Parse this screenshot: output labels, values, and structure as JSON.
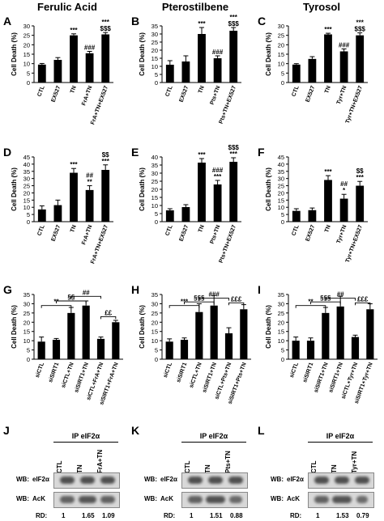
{
  "column_titles": [
    "Ferulic Acid",
    "Pterostilbene",
    "Tyrosol"
  ],
  "chart_data": [
    {
      "id": "A",
      "type": "bar",
      "ylabel": "Cell Death (%)",
      "ylim": [
        0,
        30
      ],
      "yticks": [
        0,
        5,
        10,
        15,
        20,
        25,
        30
      ],
      "categories": [
        "CTL",
        "EX527",
        "TN",
        "FrA+TN",
        "FrA+TN+EX527"
      ],
      "values": [
        9.5,
        12,
        25,
        15.5,
        25.5
      ],
      "errors": [
        0.6,
        1.2,
        0.8,
        1.0,
        1.0
      ],
      "annotations": [
        "",
        "",
        "***",
        "###",
        "***\n$$$"
      ]
    },
    {
      "id": "B",
      "type": "bar",
      "ylabel": "Cell Death (%)",
      "ylim": [
        0,
        35
      ],
      "yticks": [
        0,
        5,
        10,
        15,
        20,
        25,
        30,
        35
      ],
      "categories": [
        "CTL",
        "EX527",
        "TN",
        "Pts+TN",
        "Pts+TN+EX527"
      ],
      "values": [
        11,
        13,
        30,
        15,
        32
      ],
      "errors": [
        2.5,
        3.5,
        4.0,
        1.5,
        2.0
      ],
      "annotations": [
        "",
        "",
        "***",
        "###",
        "***\n$$$"
      ]
    },
    {
      "id": "C",
      "type": "bar",
      "ylabel": "Cell Death (%)",
      "ylim": [
        0,
        30
      ],
      "yticks": [
        0,
        5,
        10,
        15,
        20,
        25,
        30
      ],
      "categories": [
        "CTL",
        "EX527",
        "TN",
        "Tyr+TN",
        "Tyr+TN+EX527"
      ],
      "values": [
        9.5,
        12.5,
        25.5,
        16.5,
        25
      ],
      "errors": [
        0.5,
        1.2,
        0.6,
        1.3,
        1.3
      ],
      "annotations": [
        "",
        "",
        "***",
        "###",
        "***\n$$$"
      ]
    },
    {
      "id": "D",
      "type": "bar",
      "ylabel": "Cell Death (%)",
      "ylim": [
        0,
        45
      ],
      "yticks": [
        0,
        5,
        10,
        15,
        20,
        25,
        30,
        35,
        40,
        45
      ],
      "categories": [
        "CTL",
        "EX527",
        "TN",
        "FrA+TN",
        "FrA+TN+EX527"
      ],
      "values": [
        8.5,
        11.5,
        34,
        22,
        36
      ],
      "errors": [
        2.5,
        3.5,
        3.0,
        3.0,
        3.5
      ],
      "annotations": [
        "",
        "",
        "***",
        "##\n**",
        "$$\n***"
      ]
    },
    {
      "id": "E",
      "type": "bar",
      "ylabel": "Cell Death (%)",
      "ylim": [
        0,
        40
      ],
      "yticks": [
        0,
        5,
        10,
        15,
        20,
        25,
        30,
        35,
        40
      ],
      "categories": [
        "CTL",
        "EX527",
        "TN",
        "Pts+TN",
        "Pts+TN+EX527"
      ],
      "values": [
        7,
        9,
        36.5,
        23,
        37
      ],
      "errors": [
        1.0,
        1.5,
        2.5,
        2.5,
        2.5
      ],
      "annotations": [
        "",
        "",
        "***",
        "###\n***",
        "$$$\n***"
      ]
    },
    {
      "id": "F",
      "type": "bar",
      "ylabel": "Cell Death (%)",
      "ylim": [
        0,
        45
      ],
      "yticks": [
        0,
        5,
        10,
        15,
        20,
        25,
        30,
        35,
        40,
        45
      ],
      "categories": [
        "CTL",
        "EX527",
        "TN",
        "Tyr+TN",
        "Tyr+TN+EX527"
      ],
      "values": [
        7.5,
        8,
        29,
        16,
        25
      ],
      "errors": [
        1.5,
        1.5,
        3.0,
        3.0,
        3.0
      ],
      "annotations": [
        "",
        "",
        "***",
        "##\n*",
        "$$\n***"
      ]
    },
    {
      "id": "G",
      "type": "bar",
      "ylabel": "Cell Death (%)",
      "ylim": [
        0,
        35
      ],
      "yticks": [
        0,
        5,
        10,
        15,
        20,
        25,
        30,
        35
      ],
      "categories": [
        "siCTL",
        "siSIRT1",
        "siCTL+TN",
        "siSIRT1+TN",
        "siCTL+FrA+TN",
        "siSIRT1+FrA+TN"
      ],
      "values": [
        9.5,
        10.5,
        25,
        29,
        11,
        20
      ],
      "errors": [
        2.5,
        0.7,
        3.0,
        2.5,
        1.0,
        1.0
      ],
      "brackets": [
        {
          "from": 0,
          "to": 2,
          "y": 29,
          "label": "**"
        },
        {
          "from": 1,
          "to": 3,
          "y": 31.5,
          "label": "§§"
        },
        {
          "from": 2,
          "to": 4,
          "y": 34,
          "label": "##"
        },
        {
          "from": 4,
          "to": 5,
          "y": 23,
          "label": "££"
        }
      ]
    },
    {
      "id": "H",
      "type": "bar",
      "ylabel": "Cell Death (%)",
      "ylim": [
        0,
        35
      ],
      "yticks": [
        0,
        5,
        10,
        15,
        20,
        25,
        30,
        35
      ],
      "categories": [
        "siCTL",
        "siSIRT1",
        "siCTL+TN",
        "siSIRT1+TN",
        "siCTL+Pts+TN",
        "siSIRT1+Pts+TN"
      ],
      "values": [
        9.5,
        10.5,
        25.5,
        29,
        14,
        27
      ],
      "errors": [
        1.5,
        1.0,
        4.5,
        5.5,
        3.0,
        2.5
      ],
      "brackets": [
        {
          "from": 0,
          "to": 2,
          "y": 29,
          "label": "***"
        },
        {
          "from": 1,
          "to": 3,
          "y": 31,
          "label": "§§§"
        },
        {
          "from": 2,
          "to": 4,
          "y": 33,
          "label": "###"
        },
        {
          "from": 4,
          "to": 5,
          "y": 30.5,
          "label": "£££"
        }
      ]
    },
    {
      "id": "I",
      "type": "bar",
      "ylabel": "Cell Death (%)",
      "ylim": [
        0,
        35
      ],
      "yticks": [
        0,
        5,
        10,
        15,
        20,
        25,
        30,
        35
      ],
      "categories": [
        "siCTL",
        "siSIRT1",
        "siSIRT1+TN",
        "siSIRT1+TN",
        "siCTL+Tyr+TN",
        "siSIRT1+Tyr+TN"
      ],
      "values": [
        10,
        10,
        25,
        28.5,
        12,
        27
      ],
      "errors": [
        2.0,
        1.5,
        3.0,
        5.5,
        1.0,
        3.0
      ],
      "brackets": [
        {
          "from": 0,
          "to": 2,
          "y": 29,
          "label": "**"
        },
        {
          "from": 1,
          "to": 3,
          "y": 31,
          "label": "§§§"
        },
        {
          "from": 2,
          "to": 4,
          "y": 33,
          "label": "##"
        },
        {
          "from": 4,
          "to": 5,
          "y": 30.5,
          "label": "£££"
        }
      ]
    }
  ],
  "blots": [
    {
      "id": "J",
      "ip": "IP eIF2α",
      "lanes": [
        "CTL",
        "TN",
        "FrA+TN"
      ],
      "rows": [
        "eIF2α",
        "AcK"
      ],
      "wb": "WB:",
      "rd_label": "RD:",
      "rd": [
        "1",
        "1.65",
        "1.09"
      ]
    },
    {
      "id": "K",
      "ip": "IP eIF2α",
      "lanes": [
        "CTL",
        "TN",
        "Pts+TN"
      ],
      "rows": [
        "eIF2α",
        "AcK"
      ],
      "wb": "WB:",
      "rd_label": "RD:",
      "rd": [
        "1",
        "1.51",
        "0.88"
      ]
    },
    {
      "id": "L",
      "ip": "IP eIF2α",
      "lanes": [
        "CTL",
        "TN",
        "Tyr+TN"
      ],
      "rows": [
        "eIF2α",
        "AcK"
      ],
      "wb": "WB:",
      "rd_label": "RD:",
      "rd": [
        "1",
        "1.53",
        "0.79"
      ]
    }
  ]
}
